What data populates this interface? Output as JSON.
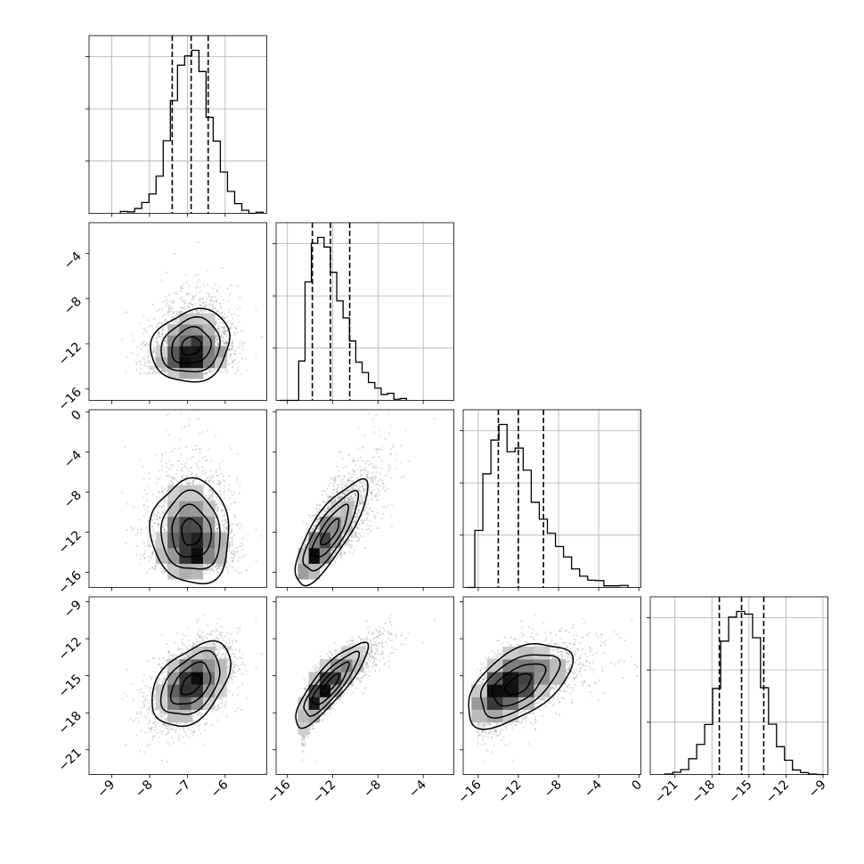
{
  "chart_data": {
    "type": "corner",
    "title": "",
    "grid": true,
    "parameters": [
      {
        "xlim": [
          -9.6,
          -4.9
        ],
        "ylim": [
          -12.6,
          -9.0
        ],
        "ticks": [
          -9,
          -8,
          -7,
          -6
        ],
        "tick_labels": [
          "−9",
          "−8",
          "−7",
          "−6"
        ],
        "mean": -6.9,
        "sd": 0.52,
        "quantiles": [
          -7.4,
          -6.9,
          -6.45
        ]
      },
      {
        "xlim": [
          -17.0,
          -1.3
        ],
        "ylim": [
          -17.0,
          -1.3
        ],
        "ticks": [
          -16,
          -12,
          -8,
          -4
        ],
        "tick_labels": [
          "−16",
          "−12",
          "−8",
          "−4"
        ],
        "mean": -12.2,
        "sd": 1.6,
        "quantiles": [
          -13.8,
          -12.2,
          -10.5
        ]
      },
      {
        "xlim": [
          -17.5,
          0.2
        ],
        "ylim": [
          -17.5,
          0.2
        ],
        "ticks": [
          -16,
          -12,
          -8,
          -4,
          0
        ],
        "tick_labels": [
          "−16",
          "−12",
          "−8",
          "−4",
          "0"
        ],
        "mean": -12.0,
        "sd": 2.6,
        "quantiles": [
          -14.0,
          -12.0,
          -9.5
        ]
      },
      {
        "xlim": [
          -23.0,
          -8.6
        ],
        "ylim": [
          -23.0,
          -8.6
        ],
        "ticks": [
          -21,
          -18,
          -15,
          -12,
          -9
        ],
        "tick_labels": [
          "−21",
          "−18",
          "−15",
          "−12",
          "−9"
        ],
        "mean": -15.7,
        "sd": 1.7,
        "quantiles": [
          -17.4,
          -15.6,
          -13.8
        ]
      }
    ],
    "correlations": [
      {
        "x": 0,
        "y": 1,
        "rho": 0.15
      },
      {
        "x": 0,
        "y": 2,
        "rho": -0.05
      },
      {
        "x": 1,
        "y": 2,
        "rho": 0.8
      },
      {
        "x": 0,
        "y": 3,
        "rho": 0.45
      },
      {
        "x": 1,
        "y": 3,
        "rho": 0.85
      },
      {
        "x": 2,
        "y": 3,
        "rho": 0.55
      }
    ],
    "n_samples": 3000,
    "hist_bins": 20
  }
}
